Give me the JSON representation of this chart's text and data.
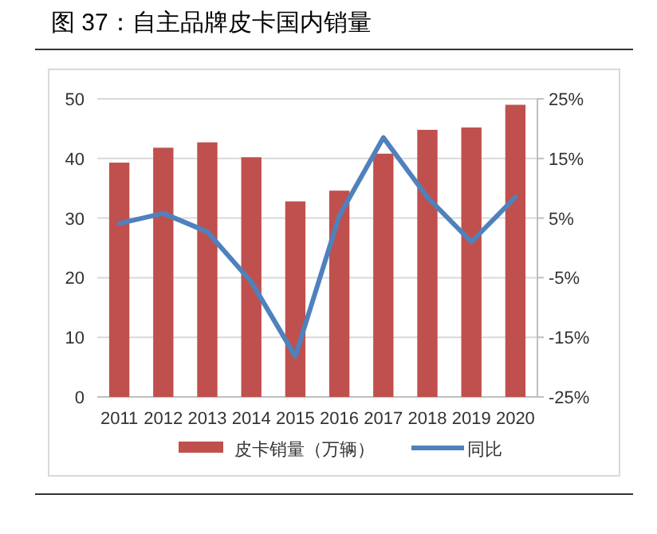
{
  "chart_data": {
    "type": "bar",
    "title": "图 37：自主品牌皮卡国内销量",
    "categories": [
      "2011",
      "2012",
      "2013",
      "2014",
      "2015",
      "2016",
      "2017",
      "2018",
      "2019",
      "2020"
    ],
    "series": [
      {
        "name": "皮卡销量（万辆）",
        "color": "#c0504d",
        "values": [
          39.3,
          41.8,
          42.7,
          40.2,
          32.8,
          34.6,
          40.8,
          44.8,
          45.2,
          49.0
        ]
      },
      {
        "name": "同比",
        "type": "line",
        "axis": "y2",
        "color": "#4f81bd",
        "values": [
          4.1,
          5.8,
          2.7,
          -5.7,
          -18.2,
          5.4,
          18.5,
          8.5,
          1.0,
          8.5
        ]
      }
    ],
    "ylim": [
      0,
      50
    ],
    "yticks": [
      0,
      10,
      20,
      30,
      40,
      50
    ],
    "y2lim": [
      -25,
      25
    ],
    "y2ticks": [
      {
        "value": -25,
        "label": "-25%"
      },
      {
        "value": -15,
        "label": "-15%"
      },
      {
        "value": -5,
        "label": "-5%"
      },
      {
        "value": 5,
        "label": "5%"
      },
      {
        "value": 15,
        "label": "15%"
      },
      {
        "value": 25,
        "label": "25%"
      }
    ],
    "grid": "y",
    "legend": "bottom",
    "marker": "none",
    "line_style": "solid"
  }
}
